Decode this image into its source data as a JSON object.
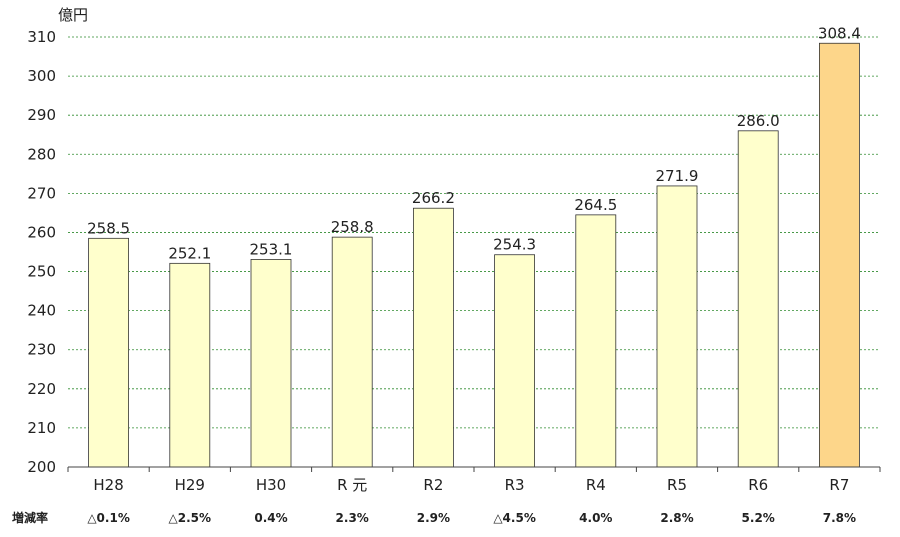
{
  "chart_data": {
    "type": "bar",
    "unit": "億円",
    "categories": [
      "H28",
      "H29",
      "H30",
      "R 元",
      "R2",
      "R3",
      "R4",
      "R5",
      "R6",
      "R7"
    ],
    "values": [
      258.5,
      252.1,
      253.1,
      258.8,
      266.2,
      254.3,
      264.5,
      271.9,
      286.0,
      308.4
    ],
    "value_labels": [
      "258.5",
      "252.1",
      "253.1",
      "258.8",
      "266.2",
      "254.3",
      "264.5",
      "271.9",
      "286.0",
      "308.4"
    ],
    "ylim": [
      200,
      310
    ],
    "yticks": [
      200,
      210,
      220,
      230,
      240,
      250,
      260,
      270,
      280,
      290,
      300,
      310
    ],
    "grid": true,
    "bar_color": "#ffffcc",
    "highlight_color": "#fdd68a",
    "highlight_index": 9,
    "rate_row": {
      "title": "増減率",
      "values": [
        "△0.1%",
        "△2.5%",
        "0.4%",
        "2.3%",
        "2.9%",
        "△4.5%",
        "4.0%",
        "2.8%",
        "5.2%",
        "7.8%"
      ]
    }
  }
}
